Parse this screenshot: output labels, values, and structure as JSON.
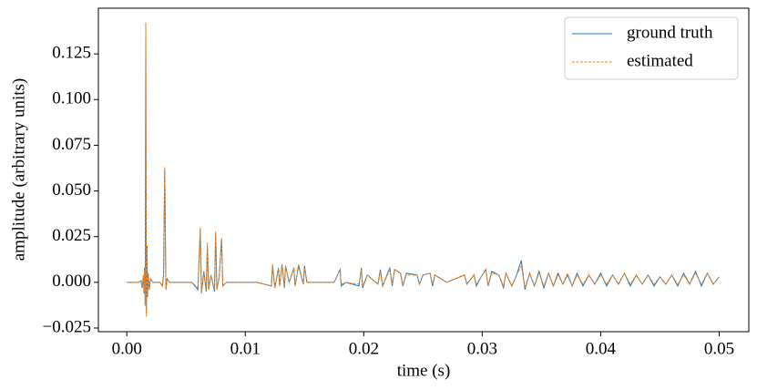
{
  "chart_data": {
    "type": "line",
    "xlabel": "time (s)",
    "ylabel": "amplitude (arbitrary units)",
    "x": [
      0,
      0.001,
      0.0012,
      0.0013,
      0.0014,
      0.00145,
      0.0015,
      0.00155,
      0.0016,
      0.00165,
      0.0017,
      0.00175,
      0.0018,
      0.0019,
      0.002,
      0.0022,
      0.0028,
      0.003,
      0.0031,
      0.0032,
      0.0033,
      0.0034,
      0.0036,
      0.0045,
      0.0055,
      0.006,
      0.0062,
      0.0063,
      0.0065,
      0.0067,
      0.0068,
      0.0069,
      0.0071,
      0.0074,
      0.0075,
      0.0076,
      0.0078,
      0.008,
      0.0081,
      0.0084,
      0.011,
      0.0122,
      0.0123,
      0.0125,
      0.0128,
      0.0129,
      0.0131,
      0.0133,
      0.0134,
      0.0137,
      0.0141,
      0.0142,
      0.0145,
      0.0149,
      0.015,
      0.0152,
      0.0175,
      0.018,
      0.0181,
      0.0185,
      0.0196,
      0.0198,
      0.0199,
      0.0203,
      0.0212,
      0.0214,
      0.0216,
      0.0222,
      0.0224,
      0.0226,
      0.0231,
      0.0233,
      0.0236,
      0.0245,
      0.0247,
      0.025,
      0.0256,
      0.0258,
      0.026,
      0.027,
      0.0285,
      0.0287,
      0.0293,
      0.0295,
      0.0299,
      0.0303,
      0.0305,
      0.0308,
      0.0314,
      0.0318,
      0.032,
      0.0325,
      0.0329,
      0.0333,
      0.0336,
      0.034,
      0.0344,
      0.0348,
      0.0352,
      0.0356,
      0.036,
      0.0364,
      0.0368,
      0.0372,
      0.0376,
      0.038,
      0.0385,
      0.039,
      0.0395,
      0.04,
      0.0405,
      0.041,
      0.0415,
      0.042,
      0.0425,
      0.043,
      0.0435,
      0.044,
      0.0445,
      0.045,
      0.0455,
      0.046,
      0.0465,
      0.047,
      0.0475,
      0.048,
      0.0485,
      0.049,
      0.0495,
      0.05
    ],
    "series": [
      {
        "name": "ground truth",
        "color": "#1f77b4",
        "dash": "solid",
        "values": [
          0,
          0,
          0.001,
          -0.003,
          0.004,
          -0.006,
          0.008,
          -0.012,
          0.14,
          -0.017,
          0.02,
          -0.008,
          0.005,
          -0.004,
          0.002,
          0,
          0,
          -0.002,
          0.004,
          0.062,
          -0.004,
          0.002,
          0,
          0,
          0,
          -0.004,
          0.029,
          -0.006,
          0.006,
          -0.005,
          0.02,
          -0.004,
          0.004,
          -0.005,
          0.027,
          -0.004,
          0.003,
          0.024,
          -0.002,
          0,
          0,
          -0.002,
          0.009,
          -0.003,
          0.008,
          -0.002,
          0.01,
          -0.003,
          0.009,
          0,
          0.008,
          -0.002,
          0.009,
          -0.001,
          0.009,
          0,
          0,
          0.007,
          -0.002,
          0,
          -0.002,
          0.008,
          -0.003,
          0.004,
          -0.001,
          0.007,
          -0.002,
          0.008,
          -0.002,
          0.007,
          0.005,
          -0.002,
          0.005,
          0.004,
          -0.001,
          0.004,
          0.005,
          -0.002,
          0.004,
          0,
          0.004,
          -0.001,
          0.004,
          -0.002,
          0.003,
          0.007,
          -0.002,
          0.006,
          0.004,
          -0.003,
          0.005,
          -0.002,
          0.004,
          0.012,
          -0.004,
          0.005,
          -0.002,
          0.006,
          -0.003,
          0.005,
          -0.002,
          0.005,
          -0.001,
          0.004,
          -0.002,
          0.005,
          -0.002,
          0.004,
          -0.001,
          0.005,
          -0.002,
          0.004,
          -0.001,
          0.005,
          -0.002,
          0.004,
          -0.001,
          0.004,
          -0.002,
          0.003,
          -0.001,
          0.004,
          -0.002,
          0.005,
          -0.001,
          0.006,
          -0.002,
          0.005,
          -0.001,
          0.003
        ]
      },
      {
        "name": "estimated",
        "color": "#ff7f0e",
        "dash": "dashed",
        "values": [
          0,
          0,
          0.001,
          -0.002,
          0.004,
          -0.005,
          0.007,
          -0.013,
          0.142,
          -0.019,
          0.019,
          -0.007,
          0.004,
          -0.004,
          0.002,
          0,
          0,
          -0.002,
          0.003,
          0.063,
          -0.004,
          0.002,
          0,
          0,
          0,
          -0.003,
          0.03,
          -0.006,
          0.005,
          -0.004,
          0.022,
          -0.004,
          0.004,
          -0.004,
          0.028,
          -0.004,
          0.003,
          0.024,
          -0.002,
          0,
          0,
          -0.002,
          0.01,
          -0.003,
          0.008,
          -0.002,
          0.01,
          -0.002,
          0.009,
          0,
          0.008,
          -0.002,
          0.01,
          -0.001,
          0.008,
          0,
          0,
          0.007,
          -0.001,
          0,
          -0.001,
          0.007,
          -0.002,
          0.004,
          -0.001,
          0.006,
          -0.002,
          0.007,
          -0.001,
          0.007,
          0.005,
          -0.001,
          0.004,
          0.004,
          -0.001,
          0.004,
          0.005,
          -0.001,
          0.004,
          0,
          0.004,
          -0.001,
          0.004,
          -0.001,
          0.003,
          0.007,
          -0.002,
          0.005,
          0.004,
          -0.002,
          0.005,
          -0.002,
          0.004,
          0.009,
          -0.003,
          0.005,
          -0.002,
          0.005,
          -0.002,
          0.005,
          -0.002,
          0.004,
          -0.001,
          0.005,
          -0.002,
          0.004,
          -0.001,
          0.004,
          -0.001,
          0.004,
          -0.001,
          0.004,
          -0.001,
          0.005,
          -0.001,
          0.004,
          -0.001,
          0.004,
          -0.001,
          0.003,
          -0.001,
          0.004,
          -0.001,
          0.004,
          -0.001,
          0.005,
          -0.001,
          0.005,
          -0.001,
          0.003
        ]
      }
    ],
    "xlim": [
      -0.0024,
      0.0525
    ],
    "xticks": [
      {
        "value": 0,
        "label": "0.00"
      },
      0.01,
      0.02,
      0.03,
      0.04,
      0.05
    ],
    "ylim": [
      -0.027,
      0.15
    ],
    "yticks": [
      {
        "value": -0.025,
        "label": "−0.025"
      },
      {
        "value": 0,
        "label": "0.000"
      },
      0.025,
      {
        "value": 0.05,
        "label": "0.050"
      },
      0.075,
      {
        "value": 0.1,
        "label": "0.100"
      },
      0.125
    ],
    "grid": false,
    "legend": "upper right"
  }
}
